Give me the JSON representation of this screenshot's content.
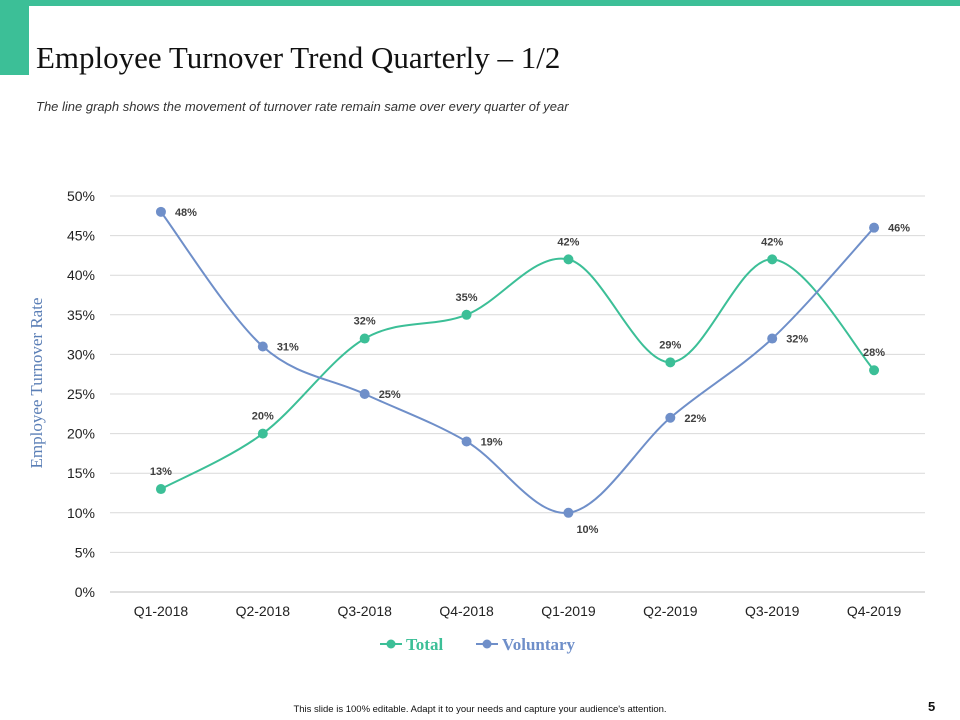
{
  "slide": {
    "title": "Employee Turnover Trend Quarterly – 1/2",
    "subtitle": "The line graph shows the movement of turnover rate remain same over every quarter of year",
    "footer": "This slide is 100% editable. Adapt it to your needs and capture your audience's attention.",
    "page_number": "5",
    "accent_color": "#3cbf97"
  },
  "chart_data": {
    "type": "line",
    "title": "",
    "xlabel": "",
    "ylabel": "Employee Turnover Rate",
    "categories": [
      "Q1-2018",
      "Q2-2018",
      "Q3-2018",
      "Q4-2018",
      "Q1-2019",
      "Q2-2019",
      "Q3-2019",
      "Q4-2019"
    ],
    "ylim": [
      0,
      50
    ],
    "yticks": [
      0,
      5,
      10,
      15,
      20,
      25,
      30,
      35,
      40,
      45,
      50
    ],
    "ytick_labels": [
      "0%",
      "5%",
      "10%",
      "15%",
      "20%",
      "25%",
      "30%",
      "35%",
      "40%",
      "45%",
      "50%"
    ],
    "grid": true,
    "legend_position": "bottom",
    "series": [
      {
        "name": "Total",
        "color": "#3cbf97",
        "values": [
          13,
          20,
          32,
          35,
          42,
          29,
          42,
          28
        ],
        "labels": [
          "13%",
          "20%",
          "32%",
          "35%",
          "42%",
          "29%",
          "42%",
          "28%"
        ]
      },
      {
        "name": "Voluntary",
        "color": "#6f8fc9",
        "values": [
          48,
          31,
          25,
          19,
          10,
          22,
          32,
          46
        ],
        "labels": [
          "48%",
          "31%",
          "25%",
          "19%",
          "10%",
          "22%",
          "32%",
          "46%"
        ]
      }
    ]
  }
}
